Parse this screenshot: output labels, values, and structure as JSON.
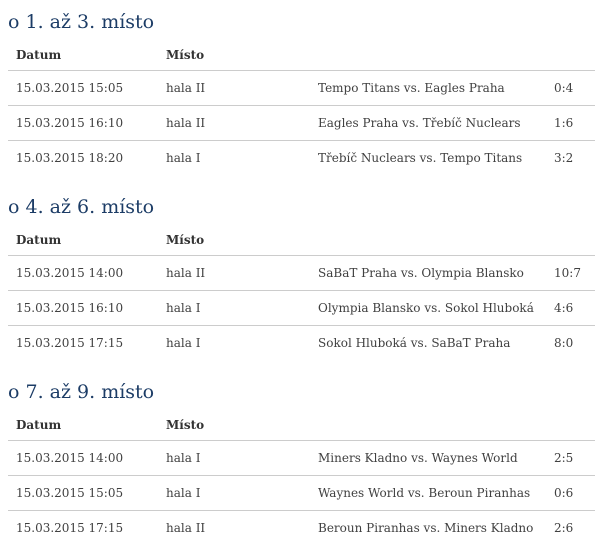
{
  "theme": {
    "background": "#ffffff",
    "heading_color": "#1c3c66",
    "text_color": "#404040",
    "header_text_color": "#333333",
    "divider_color": "#cccccc"
  },
  "columns": {
    "datum": "Datum",
    "misto": "Místo"
  },
  "sections": [
    {
      "title": "o 1. až 3. místo",
      "rows": [
        {
          "datum": "15.03.2015 15:05",
          "misto": "hala II",
          "match": "Tempo Titans vs. Eagles Praha",
          "score": "0:4"
        },
        {
          "datum": "15.03.2015 16:10",
          "misto": "hala II",
          "match": "Eagles Praha vs. Třebíč Nuclears",
          "score": "1:6"
        },
        {
          "datum": "15.03.2015 18:20",
          "misto": "hala I",
          "match": "Třebíč Nuclears vs. Tempo Titans",
          "score": "3:2"
        }
      ]
    },
    {
      "title": "o 4. až 6. místo",
      "rows": [
        {
          "datum": "15.03.2015 14:00",
          "misto": "hala II",
          "match": "SaBaT Praha vs. Olympia Blansko",
          "score": "10:7"
        },
        {
          "datum": "15.03.2015 16:10",
          "misto": "hala I",
          "match": "Olympia Blansko vs. Sokol Hluboká",
          "score": "4:6"
        },
        {
          "datum": "15.03.2015 17:15",
          "misto": "hala I",
          "match": "Sokol Hluboká vs. SaBaT Praha",
          "score": "8:0"
        }
      ]
    },
    {
      "title": "o 7. až 9. místo",
      "rows": [
        {
          "datum": "15.03.2015 14:00",
          "misto": "hala I",
          "match": "Miners Kladno vs. Waynes World",
          "score": "2:5"
        },
        {
          "datum": "15.03.2015 15:05",
          "misto": "hala I",
          "match": "Waynes World vs. Beroun Piranhas",
          "score": "0:6"
        },
        {
          "datum": "15.03.2015 17:15",
          "misto": "hala II",
          "match": "Beroun Piranhas vs. Miners Kladno",
          "score": "2:6"
        }
      ]
    }
  ]
}
